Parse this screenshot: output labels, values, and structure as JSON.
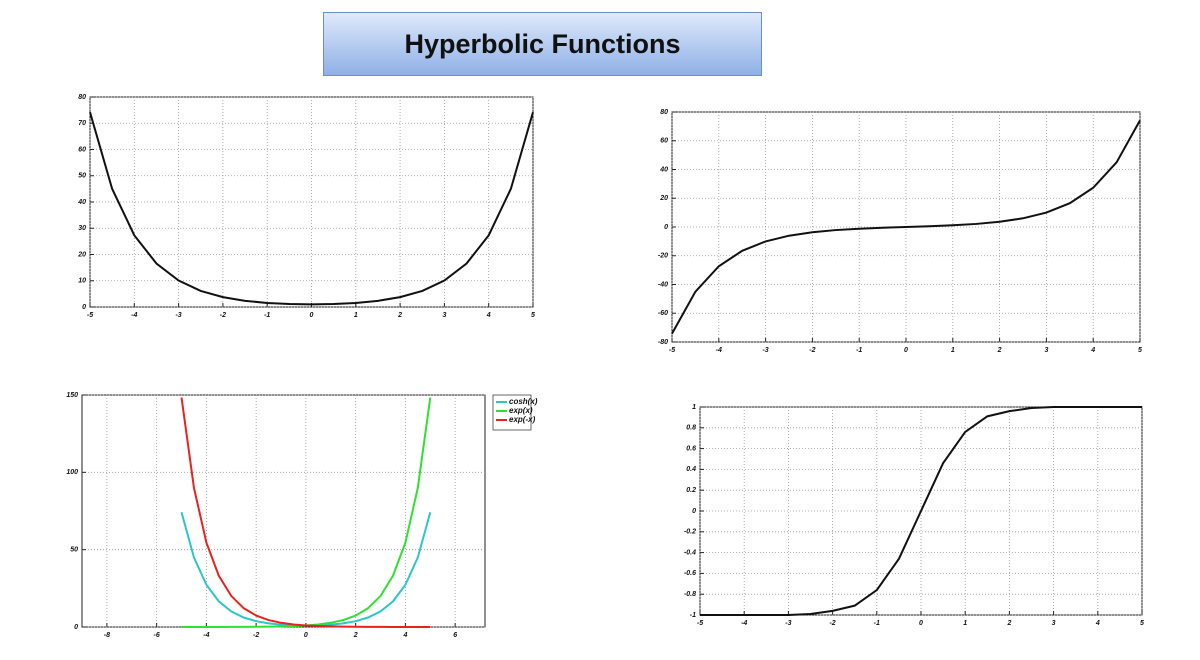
{
  "title": "Hyperbolic Functions",
  "chart_data": [
    {
      "type": "line",
      "grid": true,
      "x": [
        -5,
        -4.5,
        -4,
        -3.5,
        -3,
        -2.5,
        -2,
        -1.5,
        -1,
        -0.5,
        0,
        0.5,
        1,
        1.5,
        2,
        2.5,
        3,
        3.5,
        4,
        4.5,
        5
      ],
      "xlim": [
        -5,
        5
      ],
      "xticks": [
        -5,
        -4,
        -3,
        -2,
        -1,
        0,
        1,
        2,
        3,
        4,
        5
      ],
      "ylim": [
        0,
        80
      ],
      "yticks": [
        0,
        10,
        20,
        30,
        40,
        50,
        60,
        70,
        80
      ],
      "series": [
        {
          "color": "#111111",
          "values": [
            74.21,
            45.01,
            27.31,
            16.57,
            10.07,
            6.13,
            3.76,
            2.35,
            1.54,
            1.13,
            1,
            1.13,
            1.54,
            2.35,
            3.76,
            6.13,
            10.07,
            16.57,
            27.31,
            45.01,
            74.21
          ]
        }
      ]
    },
    {
      "type": "line",
      "grid": true,
      "x": [
        -5,
        -4.5,
        -4,
        -3.5,
        -3,
        -2.5,
        -2,
        -1.5,
        -1,
        -0.5,
        0,
        0.5,
        1,
        1.5,
        2,
        2.5,
        3,
        3.5,
        4,
        4.5,
        5
      ],
      "xlim": [
        -5,
        5
      ],
      "xticks": [
        -5,
        -4,
        -3,
        -2,
        -1,
        0,
        1,
        2,
        3,
        4,
        5
      ],
      "ylim": [
        -80,
        80
      ],
      "yticks": [
        -80,
        -60,
        -40,
        -20,
        0,
        20,
        40,
        60,
        80
      ],
      "series": [
        {
          "color": "#111111",
          "values": [
            -74.2,
            -45,
            -27.29,
            -16.54,
            -10.02,
            -6.05,
            -3.63,
            -2.13,
            -1.18,
            -0.52,
            0,
            0.52,
            1.18,
            2.13,
            3.63,
            6.05,
            10.02,
            16.54,
            27.29,
            45,
            74.2
          ]
        }
      ]
    },
    {
      "type": "line",
      "grid": true,
      "legend": "right",
      "x": [
        -5,
        -4.5,
        -4,
        -3.5,
        -3,
        -2.5,
        -2,
        -1.5,
        -1,
        -0.5,
        0,
        0.5,
        1,
        1.5,
        2,
        2.5,
        3,
        3.5,
        4,
        4.5,
        5
      ],
      "xlim": [
        -9,
        7.2
      ],
      "xticks": [
        -8,
        -6,
        -4,
        -2,
        0,
        2,
        4,
        6
      ],
      "ylim": [
        0,
        150
      ],
      "yticks": [
        0,
        50,
        100,
        150
      ],
      "series": [
        {
          "name": "cosh(x)",
          "color": "#2cc6c8",
          "values": [
            74.21,
            45.01,
            27.31,
            16.57,
            10.07,
            6.13,
            3.76,
            2.35,
            1.54,
            1.13,
            1,
            1.13,
            1.54,
            2.35,
            3.76,
            6.13,
            10.07,
            16.57,
            27.31,
            45.01,
            74.21
          ]
        },
        {
          "name": "exp(x)",
          "color": "#30e030",
          "values": [
            0.01,
            0.01,
            0.02,
            0.03,
            0.05,
            0.08,
            0.14,
            0.22,
            0.37,
            0.61,
            1,
            1.65,
            2.72,
            4.48,
            7.39,
            12.18,
            20.09,
            33.12,
            54.6,
            90.02,
            148.41
          ]
        },
        {
          "name": "exp(-x)",
          "color": "#e8231e",
          "values": [
            148.41,
            90.02,
            54.6,
            33.12,
            20.09,
            12.18,
            7.39,
            4.48,
            2.72,
            1.65,
            1,
            0.61,
            0.37,
            0.22,
            0.14,
            0.08,
            0.05,
            0.03,
            0.02,
            0.01,
            0.01
          ]
        }
      ]
    },
    {
      "type": "line",
      "grid": true,
      "x": [
        -5,
        -4.5,
        -4,
        -3.5,
        -3,
        -2.5,
        -2,
        -1.5,
        -1,
        -0.5,
        0,
        0.5,
        1,
        1.5,
        2,
        2.5,
        3,
        3.5,
        4,
        4.5,
        5
      ],
      "xlim": [
        -5,
        5
      ],
      "xticks": [
        -5,
        -4,
        -3,
        -2,
        -1,
        0,
        1,
        2,
        3,
        4,
        5
      ],
      "ylim": [
        -1,
        1
      ],
      "yticks": [
        -1,
        -0.8,
        -0.6,
        -0.4,
        -0.2,
        0,
        0.2,
        0.4,
        0.6,
        0.8,
        1
      ],
      "series": [
        {
          "color": "#111111",
          "values": [
            -1,
            -1,
            -1,
            -1,
            -1,
            -0.99,
            -0.96,
            -0.91,
            -0.76,
            -0.46,
            0,
            0.46,
            0.76,
            0.91,
            0.96,
            0.99,
            1,
            1,
            1,
            1,
            1
          ]
        }
      ]
    }
  ]
}
